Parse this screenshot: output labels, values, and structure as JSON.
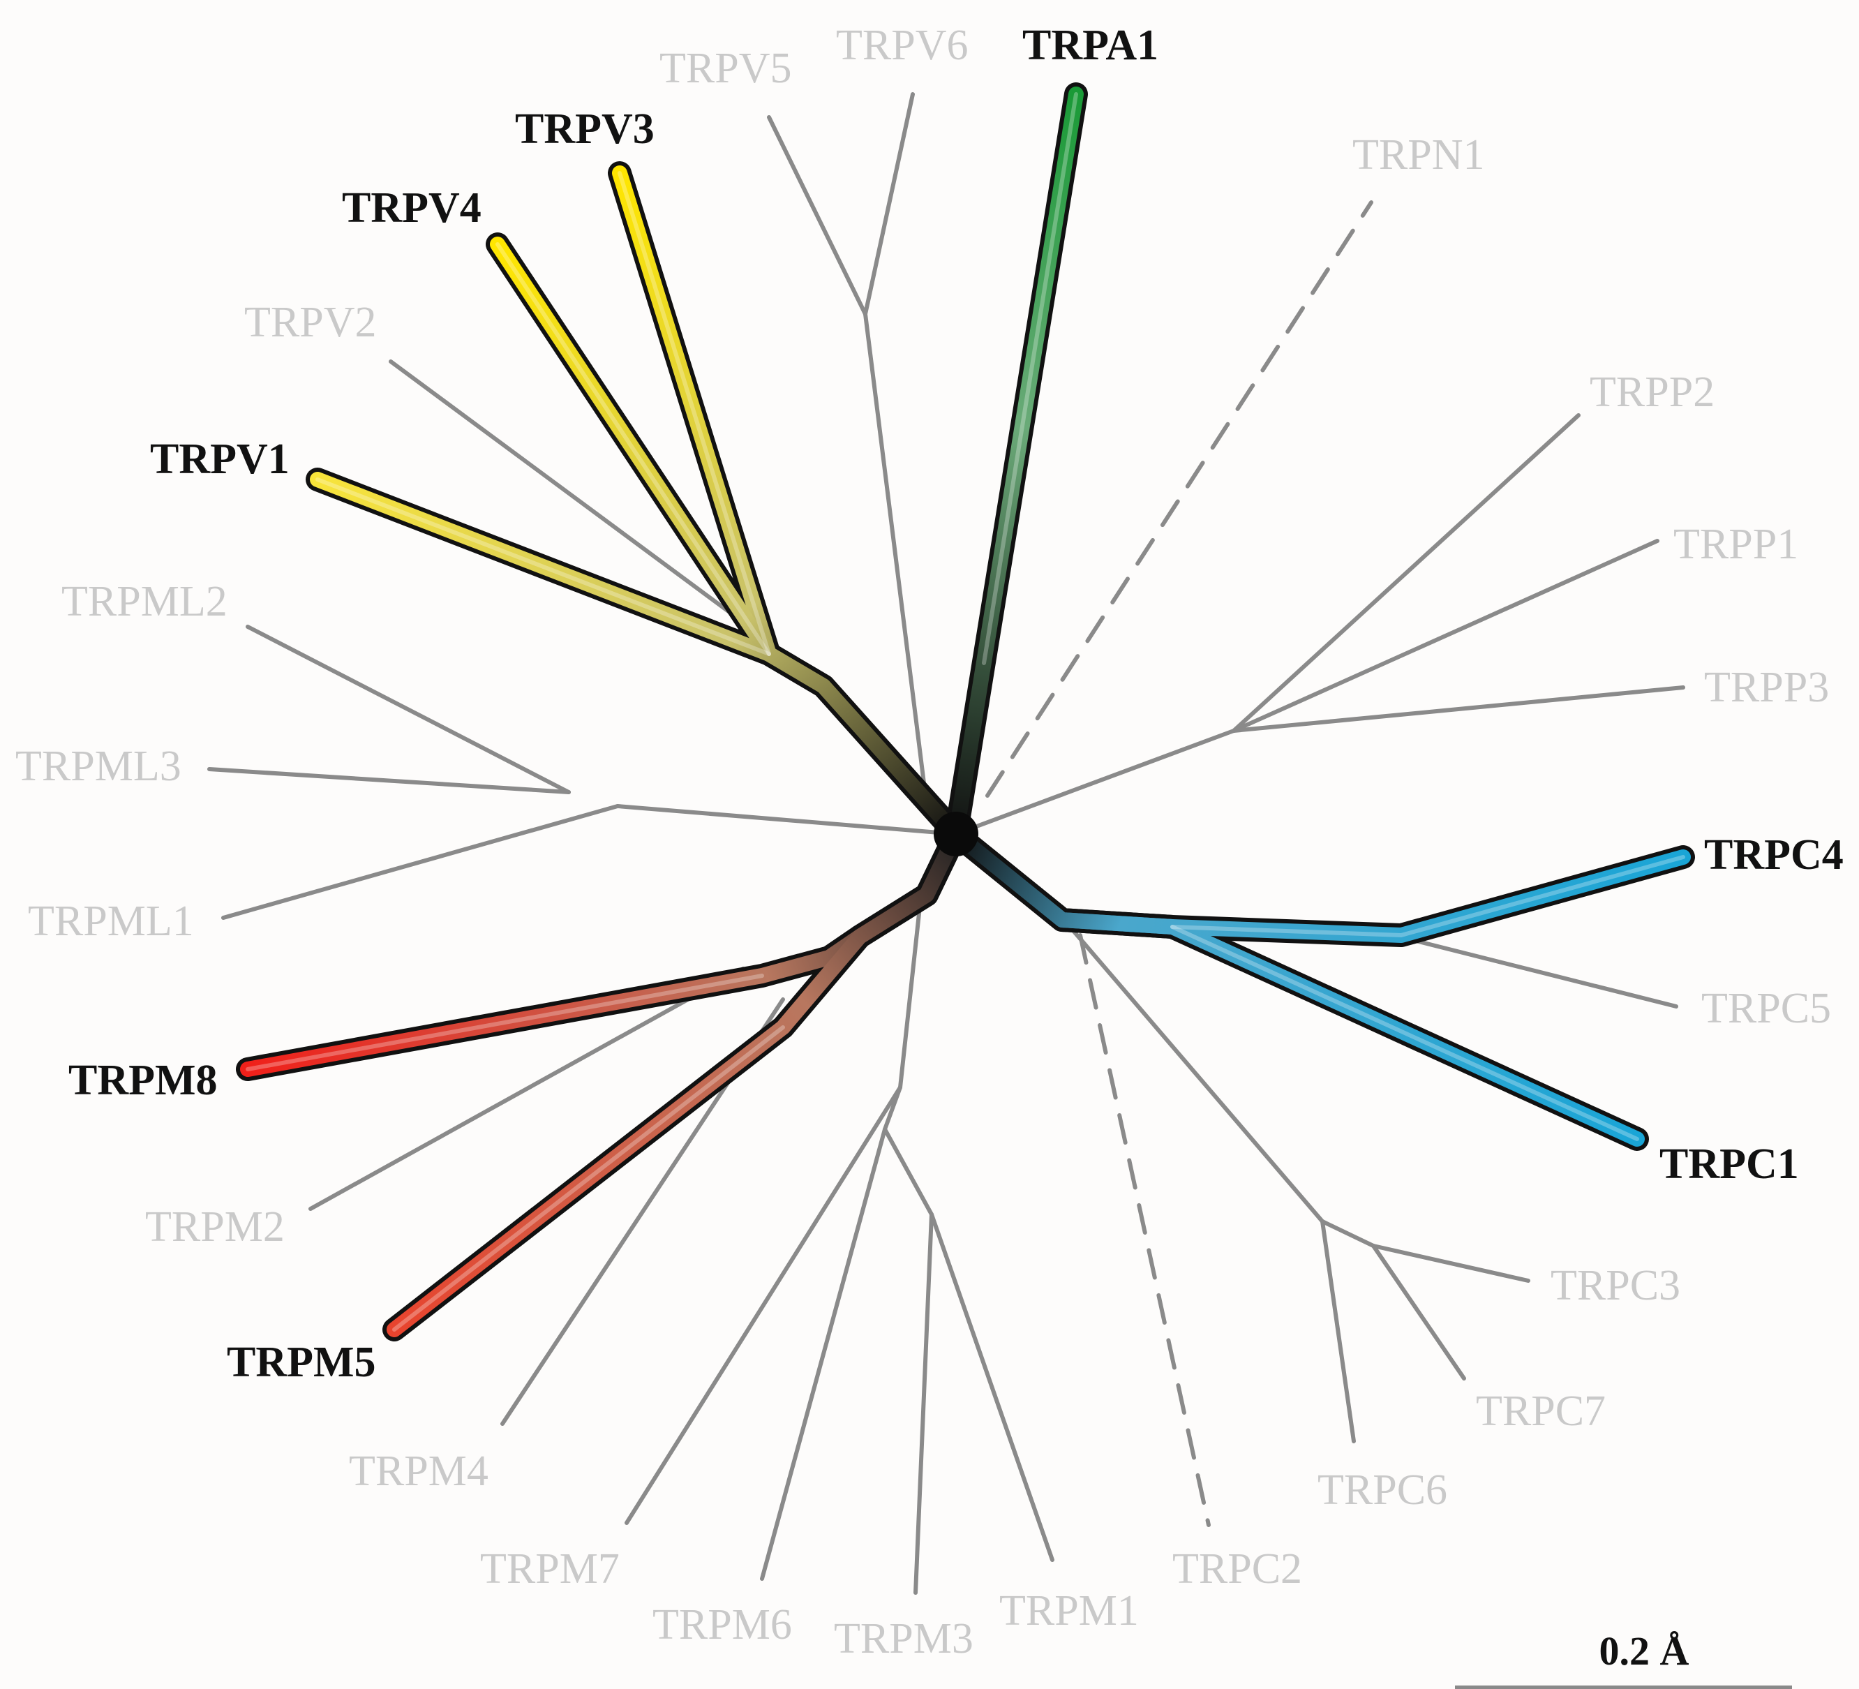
{
  "tree": {
    "highlighted": [
      "TRPA1",
      "TRPV3",
      "TRPV4",
      "TRPV1",
      "TRPC4",
      "TRPC1",
      "TRPM8",
      "TRPM5"
    ],
    "labels": {
      "TRPV6": "TRPV6",
      "TRPV5": "TRPV5",
      "TRPA1": "TRPA1",
      "TRPV3": "TRPV3",
      "TRPV4": "TRPV4",
      "TRPN1": "TRPN1",
      "TRPV2": "TRPV2",
      "TRPP2": "TRPP2",
      "TRPV1": "TRPV1",
      "TRPP1": "TRPP1",
      "TRPML2": "TRPML2",
      "TRPP3": "TRPP3",
      "TRPML3": "TRPML3",
      "TRPC4": "TRPC4",
      "TRPML1": "TRPML1",
      "TRPC5": "TRPC5",
      "TRPM8": "TRPM8",
      "TRPC1": "TRPC1",
      "TRPM2": "TRPM2",
      "TRPC3": "TRPC3",
      "TRPM5": "TRPM5",
      "TRPC7": "TRPC7",
      "TRPM4": "TRPM4",
      "TRPC6": "TRPC6",
      "TRPM7": "TRPM7",
      "TRPC2": "TRPC2",
      "TRPM6": "TRPM6",
      "TRPM1": "TRPM1",
      "TRPM3": "TRPM3"
    },
    "dashed_branches": [
      "TRPN1",
      "TRPC2"
    ],
    "colors": {
      "TRPA1": "#1a9a37",
      "TRPV_group": "#ffe600",
      "TRPC_group": "#1aa5d6",
      "TRPM8": "#f0201a",
      "TRPM5": "#e8442e",
      "muted_branch": "#8a8a8a",
      "muted_label": "#c9c9c9"
    }
  },
  "scale_bar": {
    "label": "0.2 Å"
  }
}
